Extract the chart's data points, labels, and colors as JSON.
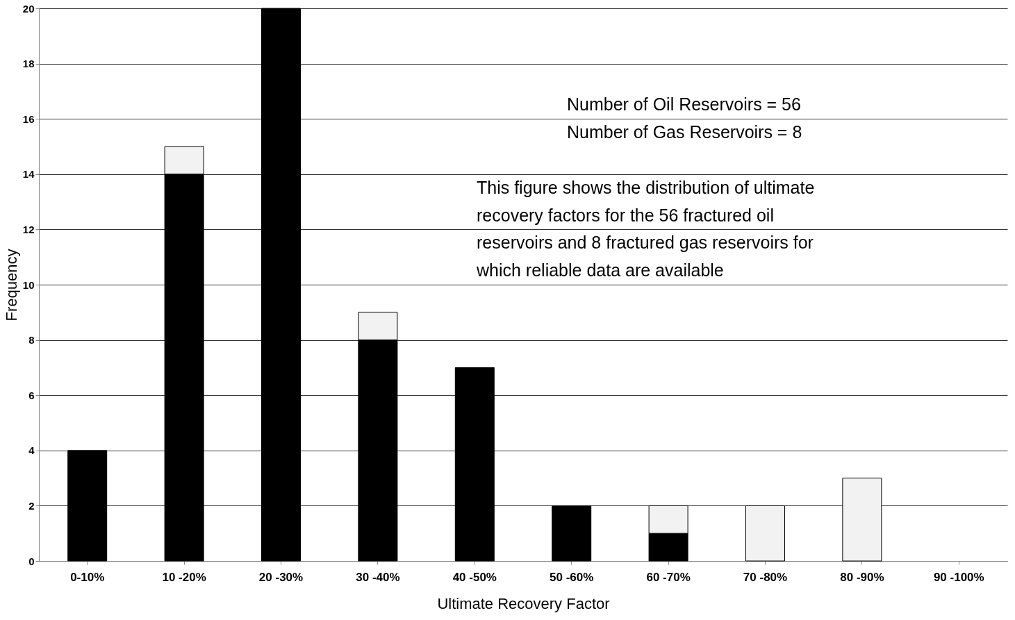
{
  "chart_data": {
    "type": "bar",
    "stacked": true,
    "xlabel": "Ultimate Recovery Factor",
    "ylabel": "Frequency",
    "categories": [
      "0-10%",
      "10 -20%",
      "20 -30%",
      "30 -40%",
      "40 -50%",
      "50 -60%",
      "60 -70%",
      "70 -80%",
      "80 -90%",
      "90 -100%"
    ],
    "series": [
      {
        "color": "#000000",
        "values": [
          4,
          14,
          20,
          8,
          7,
          2,
          1,
          null,
          null,
          null
        ]
      },
      {
        "color": "#f2f2f2",
        "values": [
          null,
          1,
          null,
          1,
          null,
          null,
          1,
          2,
          3,
          null
        ]
      }
    ],
    "ylim": [
      0,
      20
    ],
    "yticks": [
      0,
      2,
      4,
      6,
      8,
      10,
      12,
      14,
      16,
      18,
      20
    ],
    "grid": "y",
    "legend": false,
    "annotations": [
      "Number of Oil Reservoirs = 56",
      "Number of Gas Reservoirs = 8",
      "This figure shows the distribution of ultimate recovery factors for the 56 fractured oil reservoirs and 8 fractured gas reservoirs for which reliable data are available"
    ]
  }
}
